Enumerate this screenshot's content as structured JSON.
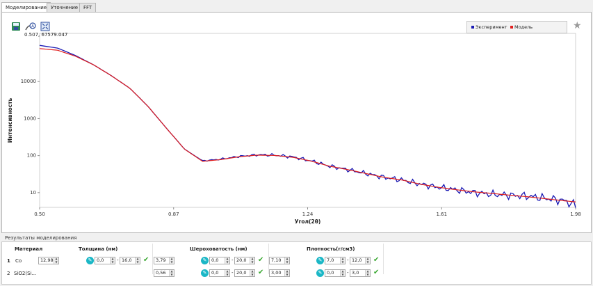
{
  "tabs": [
    {
      "label": "Моделирование"
    },
    {
      "label": "Уточнение"
    },
    {
      "label": "FFT"
    }
  ],
  "toolbar": {
    "icons": [
      "save-icon",
      "fit-icon",
      "zoom-fit-icon"
    ]
  },
  "coord_readout": "0.507, 67579.047",
  "legend": {
    "experiment": "Эксперимент",
    "model": "Модель",
    "experiment_color": "#1a1ab4",
    "model_color": "#e01e1e"
  },
  "chart_data": {
    "type": "line",
    "xlabel": "Угол(2θ)",
    "ylabel": "Интенсивность",
    "x_ticks": [
      "0.50",
      "0.87",
      "1.24",
      "1.61",
      "1.98"
    ],
    "y_ticks": [
      "10000",
      "1000",
      "100",
      "10"
    ],
    "xlim": [
      0.5,
      1.98
    ],
    "y_scale": "log",
    "ylim": [
      4,
      200000
    ],
    "grid": false,
    "legend_position": "top-right",
    "series": [
      {
        "name": "Эксперимент",
        "color": "#1a1ab4",
        "x": [
          0.5,
          0.55,
          0.6,
          0.65,
          0.7,
          0.75,
          0.8,
          0.85,
          0.9,
          0.95,
          1.0,
          1.05,
          1.1,
          1.15,
          1.2,
          1.25,
          1.3,
          1.35,
          1.4,
          1.45,
          1.5,
          1.55,
          1.6,
          1.65,
          1.7,
          1.75,
          1.8,
          1.85,
          1.9,
          1.95,
          1.98
        ],
        "y": [
          95000,
          80000,
          50000,
          28000,
          14000,
          6500,
          2100,
          550,
          150,
          72,
          80,
          95,
          105,
          103,
          92,
          72,
          52,
          42,
          33,
          26,
          22,
          17,
          14,
          12,
          10,
          9,
          8.5,
          8,
          7,
          6,
          4.5
        ]
      },
      {
        "name": "Модель",
        "color": "#e01e1e",
        "x": [
          0.5,
          0.55,
          0.6,
          0.65,
          0.7,
          0.75,
          0.8,
          0.85,
          0.9,
          0.95,
          1.0,
          1.05,
          1.1,
          1.15,
          1.2,
          1.25,
          1.3,
          1.35,
          1.4,
          1.45,
          1.5,
          1.55,
          1.6,
          1.65,
          1.7,
          1.75,
          1.8,
          1.85,
          1.9,
          1.95,
          1.98
        ],
        "y": [
          78000,
          70000,
          48000,
          28000,
          14000,
          6500,
          2100,
          550,
          150,
          70,
          78,
          93,
          103,
          101,
          90,
          71,
          52,
          42,
          33,
          26,
          22,
          17,
          14,
          12,
          10.5,
          9.5,
          8.5,
          7.7,
          6.8,
          6,
          5.6
        ]
      }
    ]
  },
  "results": {
    "label": "Результаты моделирования",
    "headers": {
      "material": "Материал",
      "thickness": "Толщина (нм)",
      "roughness": "Шероховатость (нм)",
      "density": "Плотность(г/см3)"
    },
    "rows": [
      {
        "num": "1",
        "material": "Co",
        "thickness": "12,98",
        "th_min": "0,0",
        "th_max": "16,0",
        "roughness": "3,79",
        "r_min": "0,0",
        "r_max": "20,0",
        "density": "7,10",
        "d_min": "7,0",
        "d_max": "12,0"
      },
      {
        "num": "2",
        "material": "SiO2(Si...",
        "thickness": "",
        "th_min": "",
        "th_max": "",
        "roughness": "0,56",
        "r_min": "0,0",
        "r_max": "20,0",
        "density": "3,00",
        "d_min": "0,0",
        "d_max": "3,0"
      }
    ]
  }
}
